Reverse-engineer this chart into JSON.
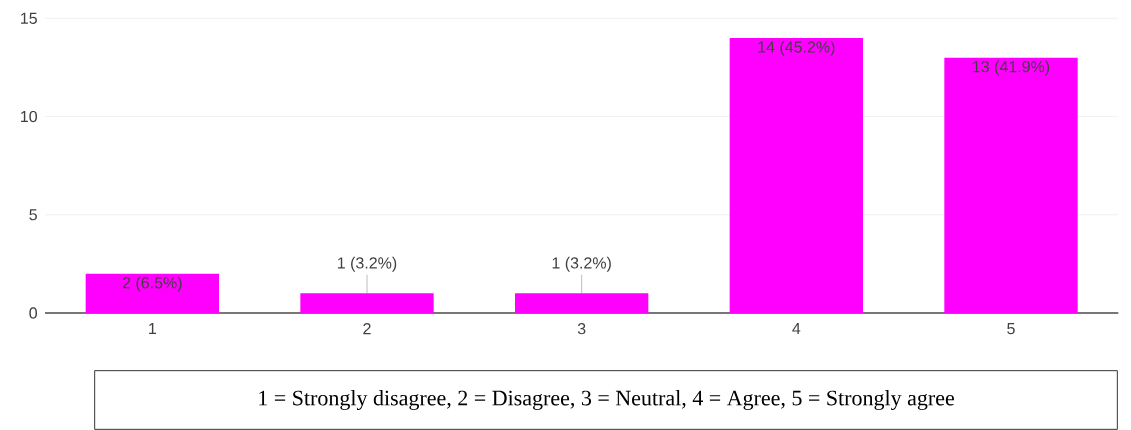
{
  "chart_data": {
    "type": "bar",
    "categories": [
      "1",
      "2",
      "3",
      "4",
      "5"
    ],
    "values": [
      2,
      1,
      1,
      14,
      13
    ],
    "color": "#ff00ff",
    "value_labels": [
      "2 (6.5%)",
      "1 (3.2%)",
      "1 (3.2%)",
      "14 (45.2%)",
      "13 (41.9%)"
    ],
    "ylim": [
      0,
      15
    ],
    "yticks": [
      0,
      5,
      10,
      15
    ],
    "grid": "y",
    "annotations": [
      "1 = Strongly disagree, 2 = Disagree, 3 = Neutral, 4 = Agree, 5 = Strongly agree"
    ]
  }
}
